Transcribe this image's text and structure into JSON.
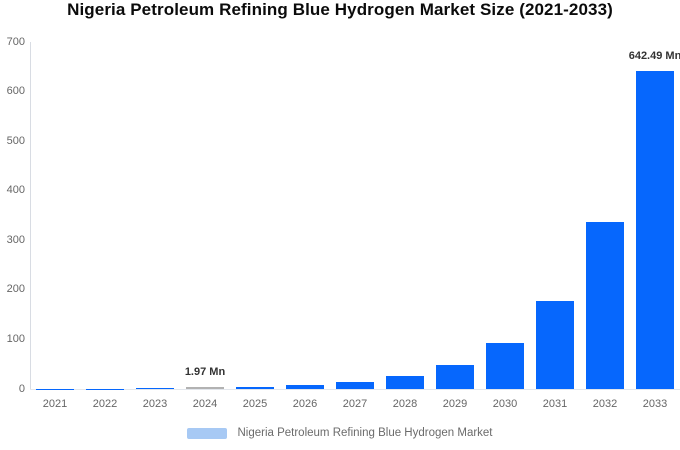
{
  "title": "Nigeria Petroleum Refining Blue Hydrogen Market Size (2021-2033)",
  "legend": {
    "label": "Nigeria Petroleum Refining Blue Hydrogen Market"
  },
  "colors": {
    "bar": "#0667fd",
    "highlight_bar": "#b2b2b2",
    "legend_swatch": "#a7c9f4",
    "y_axis_line": "#d8dce3",
    "x_axis_line": "#e2e6ec",
    "axis_label_text": "#666666",
    "data_label_text": "#333333",
    "title_text": "#0b0b0b"
  },
  "chart_data": {
    "type": "bar",
    "title": "Nigeria Petroleum Refining Blue Hydrogen Market Size (2021-2033)",
    "categories": [
      "2021",
      "2022",
      "2023",
      "2024",
      "2025",
      "2026",
      "2027",
      "2028",
      "2029",
      "2030",
      "2031",
      "2032",
      "2033"
    ],
    "values": [
      0.29,
      0.55,
      1.04,
      1.97,
      3.75,
      7.13,
      13.56,
      25.79,
      49.05,
      93.29,
      177.43,
      337.45,
      642.49
    ],
    "unit": "Mn",
    "labeled_points": {
      "2024": "1.97 Mn",
      "2033": "642.49 Mn"
    },
    "highlighted_category": "2024",
    "xlabel": "",
    "ylabel": "",
    "ylim": [
      0,
      700
    ],
    "yticks": [
      0,
      100,
      200,
      300,
      400,
      500,
      600,
      700
    ],
    "grid": false,
    "legend_position": "bottom",
    "legend_entries": [
      "Nigeria Petroleum Refining Blue Hydrogen Market"
    ]
  }
}
